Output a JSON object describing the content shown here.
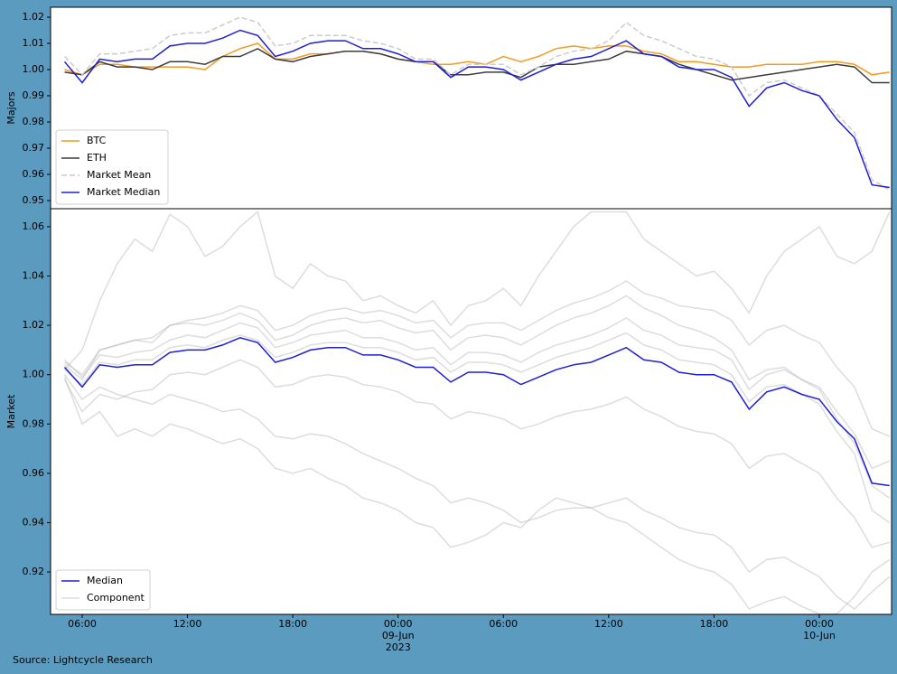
{
  "chart_data": [
    {
      "type": "line",
      "ylabel": "Majors",
      "x": [
        "2023-06-08 05:00",
        "2023-06-08 06:00",
        "2023-06-08 07:00",
        "2023-06-08 08:00",
        "2023-06-08 09:00",
        "2023-06-08 10:00",
        "2023-06-08 11:00",
        "2023-06-08 12:00",
        "2023-06-08 13:00",
        "2023-06-08 14:00",
        "2023-06-08 15:00",
        "2023-06-08 16:00",
        "2023-06-08 17:00",
        "2023-06-08 18:00",
        "2023-06-08 19:00",
        "2023-06-08 20:00",
        "2023-06-08 21:00",
        "2023-06-08 22:00",
        "2023-06-08 23:00",
        "2023-06-09 00:00",
        "2023-06-09 01:00",
        "2023-06-09 02:00",
        "2023-06-09 03:00",
        "2023-06-09 04:00",
        "2023-06-09 05:00",
        "2023-06-09 06:00",
        "2023-06-09 07:00",
        "2023-06-09 08:00",
        "2023-06-09 09:00",
        "2023-06-09 10:00",
        "2023-06-09 11:00",
        "2023-06-09 12:00",
        "2023-06-09 13:00",
        "2023-06-09 14:00",
        "2023-06-09 15:00",
        "2023-06-09 16:00",
        "2023-06-09 17:00",
        "2023-06-09 18:00",
        "2023-06-09 19:00",
        "2023-06-09 20:00",
        "2023-06-09 21:00",
        "2023-06-09 22:00",
        "2023-06-09 23:00",
        "2023-06-10 00:00",
        "2023-06-10 01:00",
        "2023-06-10 02:00",
        "2023-06-10 03:00",
        "2023-06-10 04:00"
      ],
      "xlim": [
        "2023-06-08 04:12",
        "2023-06-10 04:07"
      ],
      "ylim": [
        0.9469,
        1.0238
      ],
      "yticks": [
        0.95,
        0.96,
        0.97,
        0.98,
        0.99,
        {
          "value": 1,
          "label": "1.00"
        },
        1.01,
        1.02
      ],
      "legend": "lower left",
      "series": [
        {
          "name": "BTC",
          "color": "#f29b1d",
          "linestyle": "solid",
          "values": [
            1.0,
            0.998,
            1.002,
            1.002,
            1.001,
            1.001,
            1.001,
            1.001,
            1.0,
            1.005,
            1.008,
            1.01,
            1.004,
            1.004,
            1.006,
            1.006,
            1.007,
            1.007,
            1.006,
            1.004,
            1.003,
            1.002,
            1.002,
            1.003,
            1.002,
            1.005,
            1.003,
            1.005,
            1.008,
            1.009,
            1.008,
            1.009,
            1.009,
            1.007,
            1.006,
            1.003,
            1.003,
            1.002,
            1.001,
            1.001,
            1.002,
            1.002,
            1.002,
            1.003,
            1.003,
            1.002,
            0.998,
            0.999
          ]
        },
        {
          "name": "ETH",
          "color": "#3c3c3c",
          "linestyle": "solid",
          "values": [
            0.999,
            0.998,
            1.003,
            1.001,
            1.001,
            1.0,
            1.003,
            1.003,
            1.002,
            1.005,
            1.005,
            1.008,
            1.004,
            1.003,
            1.005,
            1.006,
            1.007,
            1.007,
            1.006,
            1.004,
            1.003,
            1.003,
            0.998,
            0.998,
            0.999,
            0.999,
            0.997,
            1.001,
            1.002,
            1.002,
            1.003,
            1.004,
            1.007,
            1.006,
            1.005,
            1.002,
            1.0,
            0.998,
            0.996,
            0.997,
            0.998,
            0.999,
            1.0,
            1.001,
            1.002,
            1.001,
            0.995,
            0.995
          ]
        },
        {
          "name": "Market Mean",
          "color": "#cccccc",
          "linestyle": "dashed",
          "values": [
            1.005,
            0.998,
            1.006,
            1.006,
            1.007,
            1.008,
            1.013,
            1.014,
            1.014,
            1.017,
            1.02,
            1.018,
            1.009,
            1.01,
            1.013,
            1.013,
            1.013,
            1.011,
            1.01,
            1.008,
            1.004,
            1.004,
            0.998,
            1.002,
            1.002,
            1.002,
            0.998,
            1.001,
            1.005,
            1.007,
            1.008,
            1.011,
            1.018,
            1.013,
            1.011,
            1.008,
            1.005,
            1.004,
            1.001,
            0.99,
            0.995,
            0.996,
            0.993,
            0.99,
            0.983,
            0.976,
            0.958,
            0.954
          ]
        },
        {
          "name": "Market Median",
          "color": "#1f1fd6",
          "linestyle": "solid",
          "values": [
            1.003,
            0.995,
            1.004,
            1.003,
            1.004,
            1.004,
            1.009,
            1.01,
            1.01,
            1.012,
            1.015,
            1.013,
            1.005,
            1.007,
            1.01,
            1.011,
            1.011,
            1.008,
            1.008,
            1.006,
            1.003,
            1.003,
            0.997,
            1.001,
            1.001,
            1.0,
            0.996,
            0.999,
            1.002,
            1.004,
            1.005,
            1.008,
            1.011,
            1.006,
            1.005,
            1.001,
            1.0,
            1.0,
            0.997,
            0.986,
            0.993,
            0.995,
            0.992,
            0.99,
            0.981,
            0.974,
            0.956,
            0.955
          ]
        }
      ]
    },
    {
      "type": "line",
      "ylabel": "Market",
      "x": [
        "2023-06-08 05:00",
        "2023-06-08 06:00",
        "2023-06-08 07:00",
        "2023-06-08 08:00",
        "2023-06-08 09:00",
        "2023-06-08 10:00",
        "2023-06-08 11:00",
        "2023-06-08 12:00",
        "2023-06-08 13:00",
        "2023-06-08 14:00",
        "2023-06-08 15:00",
        "2023-06-08 16:00",
        "2023-06-08 17:00",
        "2023-06-08 18:00",
        "2023-06-08 19:00",
        "2023-06-08 20:00",
        "2023-06-08 21:00",
        "2023-06-08 22:00",
        "2023-06-08 23:00",
        "2023-06-09 00:00",
        "2023-06-09 01:00",
        "2023-06-09 02:00",
        "2023-06-09 03:00",
        "2023-06-09 04:00",
        "2023-06-09 05:00",
        "2023-06-09 06:00",
        "2023-06-09 07:00",
        "2023-06-09 08:00",
        "2023-06-09 09:00",
        "2023-06-09 10:00",
        "2023-06-09 11:00",
        "2023-06-09 12:00",
        "2023-06-09 13:00",
        "2023-06-09 14:00",
        "2023-06-09 15:00",
        "2023-06-09 16:00",
        "2023-06-09 17:00",
        "2023-06-09 18:00",
        "2023-06-09 19:00",
        "2023-06-09 20:00",
        "2023-06-09 21:00",
        "2023-06-09 22:00",
        "2023-06-09 23:00",
        "2023-06-10 00:00",
        "2023-06-10 01:00",
        "2023-06-10 02:00",
        "2023-06-10 03:00",
        "2023-06-10 04:00"
      ],
      "xlim": [
        "2023-06-08 04:12",
        "2023-06-10 04:07"
      ],
      "xticks": [
        {
          "value": "2023-06-08 06:00",
          "label": "06:00"
        },
        {
          "value": "2023-06-08 12:00",
          "label": "12:00"
        },
        {
          "value": "2023-06-08 18:00",
          "label": "18:00"
        },
        {
          "value": "2023-06-09 00:00",
          "label": "00:00\n09-Jun\n2023"
        },
        {
          "value": "2023-06-09 06:00",
          "label": "06:00"
        },
        {
          "value": "2023-06-09 12:00",
          "label": "12:00"
        },
        {
          "value": "2023-06-09 18:00",
          "label": "18:00"
        },
        {
          "value": "2023-06-10 00:00",
          "label": "00:00\n10-Jun"
        }
      ],
      "ylim": [
        0.9028,
        1.0673
      ],
      "yticks": [
        0.92,
        0.94,
        0.96,
        0.98,
        {
          "value": 1,
          "label": "1.00"
        },
        1.02,
        1.04,
        1.06
      ],
      "legend": "lower left",
      "series": [
        {
          "name": "Median",
          "color": "#1f1fd6",
          "linestyle": "solid",
          "values": [
            1.003,
            0.995,
            1.004,
            1.003,
            1.004,
            1.004,
            1.009,
            1.01,
            1.01,
            1.012,
            1.015,
            1.013,
            1.005,
            1.007,
            1.01,
            1.011,
            1.011,
            1.008,
            1.008,
            1.006,
            1.003,
            1.003,
            0.997,
            1.001,
            1.001,
            1.0,
            0.996,
            0.999,
            1.002,
            1.004,
            1.005,
            1.008,
            1.011,
            1.006,
            1.005,
            1.001,
            1.0,
            1.0,
            0.997,
            0.986,
            0.993,
            0.995,
            0.992,
            0.99,
            0.981,
            0.974,
            0.956,
            0.955
          ]
        }
      ],
      "components": {
        "name": "Component",
        "color": "#b4b4b4",
        "alpha": 0.45,
        "series": [
          [
            1.005,
            1.0,
            1.01,
            1.012,
            1.014,
            1.015,
            1.02,
            1.022,
            1.023,
            1.025,
            1.028,
            1.026,
            1.018,
            1.02,
            1.024,
            1.026,
            1.027,
            1.025,
            1.026,
            1.024,
            1.021,
            1.022,
            1.015,
            1.02,
            1.021,
            1.021,
            1.018,
            1.022,
            1.026,
            1.029,
            1.031,
            1.034,
            1.038,
            1.033,
            1.031,
            1.028,
            1.027,
            1.026,
            1.022,
            1.012,
            1.018,
            1.02,
            1.016,
            1.013,
            1.003,
            0.995,
            0.978,
            0.975
          ],
          [
            1.0,
            0.99,
            0.995,
            0.992,
            0.99,
            0.988,
            0.992,
            0.99,
            0.988,
            0.985,
            0.986,
            0.982,
            0.975,
            0.974,
            0.976,
            0.975,
            0.972,
            0.968,
            0.965,
            0.962,
            0.958,
            0.955,
            0.948,
            0.95,
            0.948,
            0.945,
            0.94,
            0.942,
            0.945,
            0.946,
            0.946,
            0.948,
            0.95,
            0.945,
            0.942,
            0.938,
            0.936,
            0.935,
            0.93,
            0.92,
            0.925,
            0.926,
            0.922,
            0.918,
            0.91,
            0.905,
            0.912,
            0.918
          ],
          [
            1.002,
            1.01,
            1.03,
            1.045,
            1.055,
            1.05,
            1.065,
            1.06,
            1.048,
            1.052,
            1.06,
            1.066,
            1.04,
            1.035,
            1.045,
            1.04,
            1.038,
            1.03,
            1.032,
            1.028,
            1.025,
            1.03,
            1.02,
            1.028,
            1.03,
            1.035,
            1.028,
            1.04,
            1.05,
            1.06,
            1.066,
            1.066,
            1.066,
            1.055,
            1.05,
            1.045,
            1.04,
            1.042,
            1.035,
            1.025,
            1.04,
            1.05,
            1.055,
            1.06,
            1.048,
            1.045,
            1.05,
            1.066
          ],
          [
            1.006,
            0.999,
            1.008,
            1.007,
            1.009,
            1.01,
            1.014,
            1.016,
            1.015,
            1.018,
            1.021,
            1.019,
            1.011,
            1.013,
            1.016,
            1.017,
            1.018,
            1.015,
            1.015,
            1.013,
            1.01,
            1.011,
            1.004,
            1.009,
            1.009,
            1.008,
            1.005,
            1.009,
            1.012,
            1.014,
            1.016,
            1.019,
            1.023,
            1.018,
            1.016,
            1.012,
            1.011,
            1.01,
            1.006,
            0.994,
            1.0,
            1.002,
            0.998,
            0.995,
            0.985,
            0.976,
            0.962,
            0.965
          ],
          [
            0.998,
            0.985,
            0.992,
            0.99,
            0.993,
            0.994,
            1.0,
            1.001,
            1.0,
            1.003,
            1.006,
            1.003,
            0.995,
            0.996,
            0.999,
            1.0,
            0.999,
            0.996,
            0.995,
            0.993,
            0.989,
            0.988,
            0.982,
            0.985,
            0.984,
            0.982,
            0.978,
            0.98,
            0.983,
            0.985,
            0.986,
            0.988,
            0.991,
            0.986,
            0.983,
            0.979,
            0.977,
            0.976,
            0.972,
            0.962,
            0.967,
            0.968,
            0.964,
            0.96,
            0.95,
            0.942,
            0.93,
            0.932
          ],
          [
            0.999,
            0.98,
            0.985,
            0.975,
            0.978,
            0.975,
            0.98,
            0.978,
            0.975,
            0.972,
            0.974,
            0.97,
            0.962,
            0.96,
            0.962,
            0.958,
            0.955,
            0.95,
            0.948,
            0.945,
            0.94,
            0.938,
            0.93,
            0.932,
            0.935,
            0.94,
            0.938,
            0.945,
            0.95,
            0.948,
            0.946,
            0.942,
            0.94,
            0.935,
            0.93,
            0.925,
            0.922,
            0.92,
            0.915,
            0.905,
            0.908,
            0.91,
            0.906,
            0.903,
            0.903,
            0.91,
            0.92,
            0.925
          ],
          [
            1.004,
            0.998,
            1.01,
            1.012,
            1.014,
            1.013,
            1.02,
            1.021,
            1.02,
            1.022,
            1.025,
            1.022,
            1.014,
            1.016,
            1.02,
            1.022,
            1.023,
            1.021,
            1.022,
            1.019,
            1.017,
            1.018,
            1.01,
            1.015,
            1.016,
            1.015,
            1.012,
            1.016,
            1.02,
            1.023,
            1.025,
            1.028,
            1.032,
            1.027,
            1.024,
            1.02,
            1.018,
            1.015,
            1.01,
            0.998,
            1.002,
            1.003,
            0.998,
            0.994,
            0.982,
            0.972,
            0.955,
            0.95
          ],
          [
            1.002,
            0.996,
            1.005,
            1.004,
            1.006,
            1.006,
            1.011,
            1.012,
            1.011,
            1.014,
            1.016,
            1.014,
            1.007,
            1.009,
            1.012,
            1.013,
            1.013,
            1.011,
            1.011,
            1.009,
            1.006,
            1.007,
            1.001,
            1.005,
            1.005,
            1.004,
            1.001,
            1.004,
            1.007,
            1.009,
            1.011,
            1.014,
            1.017,
            1.012,
            1.01,
            1.006,
            1.005,
            1.004,
            1.0,
            0.989,
            0.995,
            0.996,
            0.992,
            0.988,
            0.977,
            0.968,
            0.945,
            0.94
          ]
        ]
      }
    }
  ],
  "source": "Source: Lightcycle Research"
}
